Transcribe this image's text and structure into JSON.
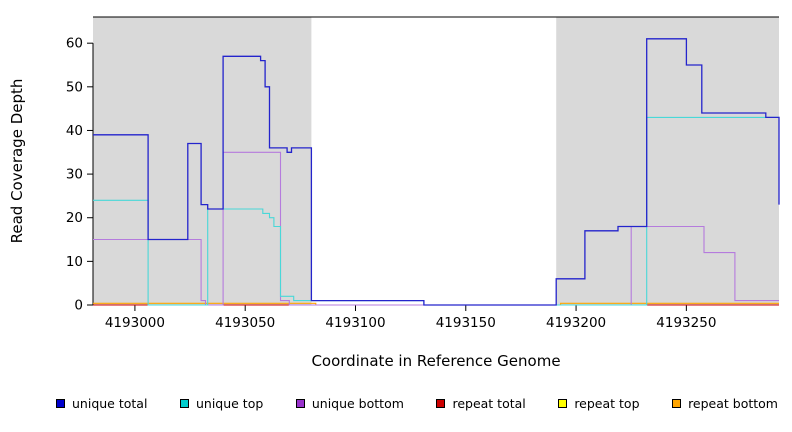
{
  "chart_data": {
    "type": "line",
    "subtype": "step-coverage",
    "title": "",
    "xlabel": "Coordinate in Reference Genome",
    "ylabel": "Read Coverage Depth",
    "xlim": [
      4192981,
      4193292
    ],
    "ylim": [
      0,
      66
    ],
    "x_ticks": [
      4193000,
      4193050,
      4193100,
      4193150,
      4193200,
      4193250
    ],
    "y_ticks": [
      0,
      10,
      20,
      30,
      40,
      50,
      60
    ],
    "grid": false,
    "legend_position": "bottom",
    "shade_color": "#d9d9d9",
    "shaded_regions": [
      {
        "from": 4192981,
        "to": 4193080
      },
      {
        "from": 4193191,
        "to": 4193292
      }
    ],
    "series": [
      {
        "name": "repeat bottom",
        "slug": "repeat-bottom",
        "color": "#ffa500",
        "width": 1.1,
        "points": [
          [
            4192981,
            0.4
          ],
          [
            4193082,
            0
          ],
          [
            4193193,
            0.4
          ],
          [
            4193292,
            0.4
          ]
        ]
      },
      {
        "name": "repeat top",
        "slug": "repeat-top",
        "color": "#f0f000",
        "width": 1.1,
        "points": [
          [
            4192981,
            0
          ],
          [
            4193292,
            0
          ]
        ]
      },
      {
        "name": "repeat total",
        "slug": "repeat-total",
        "color": "#cd0000",
        "width": 1.1,
        "points": [
          [
            4192981,
            0
          ],
          [
            4193292,
            0
          ]
        ]
      },
      {
        "name": "unique bottom",
        "slug": "unique-bottom",
        "color": "#b57bdd",
        "width": 1.1,
        "points": [
          [
            4192981,
            15
          ],
          [
            4193028,
            15
          ],
          [
            4193030,
            1
          ],
          [
            4193032,
            0
          ],
          [
            4193040,
            35
          ],
          [
            4193064,
            35
          ],
          [
            4193066,
            1
          ],
          [
            4193070,
            0
          ],
          [
            4193225,
            18
          ],
          [
            4193258,
            12
          ],
          [
            4193272,
            1
          ],
          [
            4193292,
            1
          ]
        ]
      },
      {
        "name": "unique top",
        "slug": "unique-top",
        "color": "#49d8d8",
        "width": 1.1,
        "points": [
          [
            4192981,
            24
          ],
          [
            4193006,
            0
          ],
          [
            4193033,
            22
          ],
          [
            4193058,
            21
          ],
          [
            4193061,
            20
          ],
          [
            4193063,
            18
          ],
          [
            4193066,
            2
          ],
          [
            4193072,
            1
          ],
          [
            4193080,
            1
          ],
          [
            4193131,
            0
          ],
          [
            4193232,
            43
          ],
          [
            4193292,
            43
          ]
        ]
      },
      {
        "name": "unique total",
        "slug": "unique-total",
        "color": "#2424cc",
        "width": 1.3,
        "points": [
          [
            4192981,
            39
          ],
          [
            4193006,
            15
          ],
          [
            4193024,
            37
          ],
          [
            4193030,
            23
          ],
          [
            4193033,
            22
          ],
          [
            4193040,
            57
          ],
          [
            4193057,
            56
          ],
          [
            4193059,
            50
          ],
          [
            4193061,
            36
          ],
          [
            4193069,
            35
          ],
          [
            4193071,
            36
          ],
          [
            4193080,
            1
          ],
          [
            4193131,
            0
          ],
          [
            4193191,
            6
          ],
          [
            4193204,
            17
          ],
          [
            4193219,
            18
          ],
          [
            4193232,
            61
          ],
          [
            4193250,
            55
          ],
          [
            4193257,
            44
          ],
          [
            4193286,
            43
          ],
          [
            4193292,
            23
          ]
        ]
      }
    ]
  },
  "legend": {
    "items": [
      {
        "label": "unique total",
        "slug": "unique-total",
        "color": "#0000cd"
      },
      {
        "label": "unique top",
        "slug": "unique-top",
        "color": "#00cdcd"
      },
      {
        "label": "unique bottom",
        "slug": "unique-bottom",
        "color": "#9932cc"
      },
      {
        "label": "repeat total",
        "slug": "repeat-total",
        "color": "#cd0000"
      },
      {
        "label": "repeat top",
        "slug": "repeat-top",
        "color": "#ffff00"
      },
      {
        "label": "repeat bottom",
        "slug": "repeat-bottom",
        "color": "#ffa500"
      }
    ]
  }
}
